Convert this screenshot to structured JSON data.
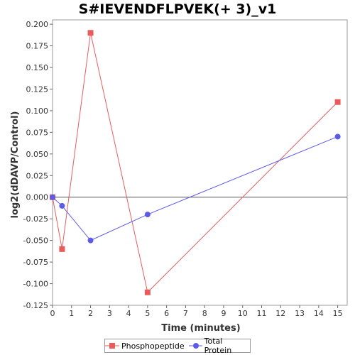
{
  "chart_data": {
    "type": "line",
    "title": "S#IEVENDFLPVEK(+ 3)_v1",
    "xlabel": "Time (minutes)",
    "ylabel": "log2(dDAVP/Control)",
    "xlim": [
      0,
      15.5
    ],
    "ylim": [
      -0.125,
      0.205
    ],
    "xticks": [
      "0",
      "1",
      "2",
      "3",
      "4",
      "5",
      "6",
      "7",
      "8",
      "9",
      "10",
      "11",
      "12",
      "13",
      "14",
      "15"
    ],
    "yticks": [
      "0.200",
      "0.175",
      "0.150",
      "0.125",
      "0.100",
      "0.075",
      "0.050",
      "0.025",
      "0.000",
      "-0.025",
      "-0.050",
      "-0.075",
      "-0.100",
      "-0.125"
    ],
    "ytick_values": [
      0.2,
      0.175,
      0.15,
      0.125,
      0.1,
      0.075,
      0.05,
      0.025,
      0.0,
      -0.025,
      -0.05,
      -0.075,
      -0.1,
      -0.125
    ],
    "grid": false,
    "legend_position": "bottom",
    "series": [
      {
        "name": "Phosphopeptide",
        "color": "#e85c5c",
        "marker": "square",
        "x": [
          0,
          0.5,
          2,
          5,
          15
        ],
        "values": [
          0.0,
          -0.06,
          0.19,
          -0.11,
          0.11
        ]
      },
      {
        "name": "Total Protein",
        "color": "#5b5be8",
        "marker": "circle",
        "x": [
          0,
          0.5,
          2,
          5,
          15
        ],
        "values": [
          0.0,
          -0.01,
          -0.05,
          -0.02,
          0.07
        ]
      }
    ]
  }
}
